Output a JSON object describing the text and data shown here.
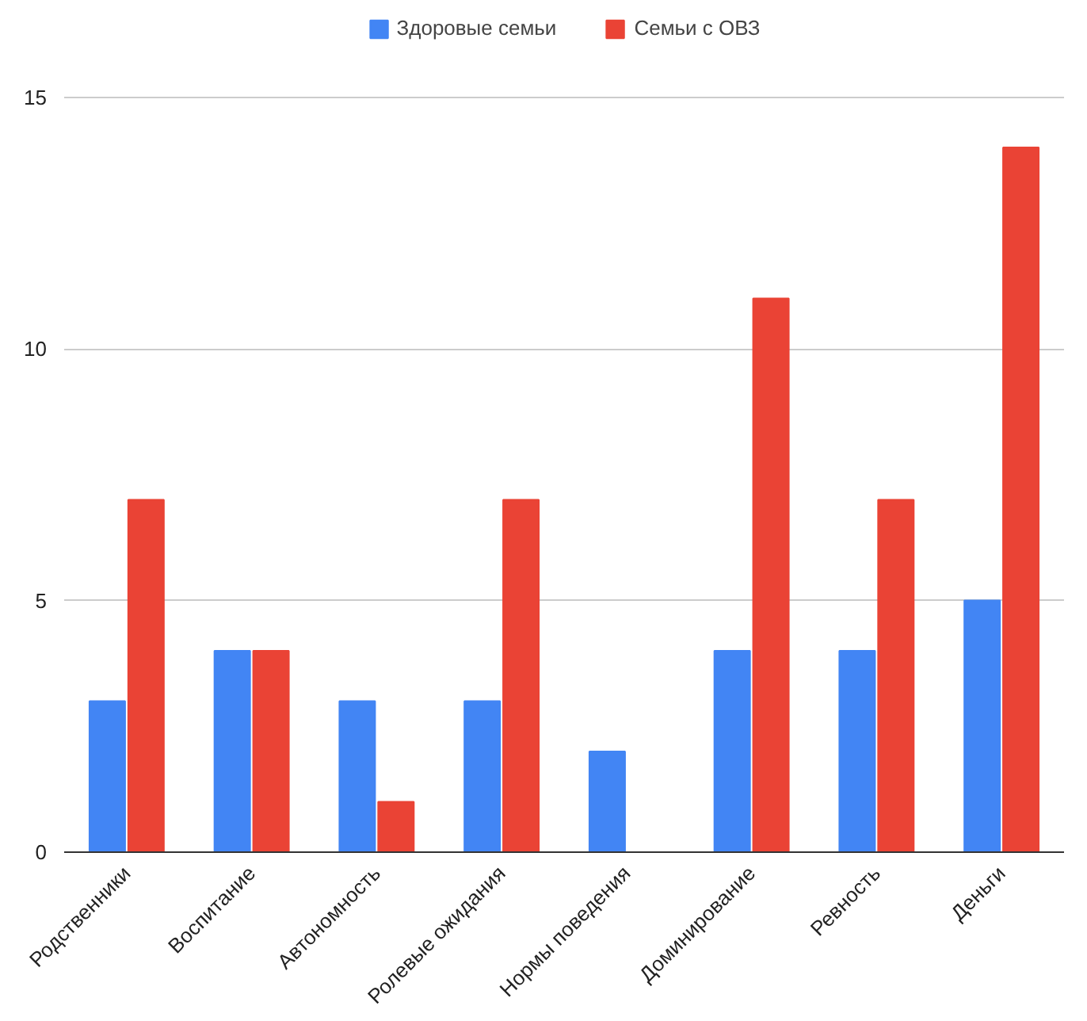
{
  "chart_data": {
    "type": "bar",
    "categories": [
      "Родственники",
      "Воспитание",
      "Автономность",
      "Ролевые ожидания",
      "Нормы поведения",
      "Доминирование",
      "Ревность",
      "Деньги"
    ],
    "series": [
      {
        "name": "Здоровые семьи",
        "color": "#4285f4",
        "values": [
          3,
          4,
          3,
          3,
          2,
          4,
          4,
          5
        ]
      },
      {
        "name": "Семьи с ОВЗ",
        "color": "#ea4335",
        "values": [
          7,
          4,
          1,
          7,
          0,
          11,
          7,
          14
        ]
      }
    ],
    "ylim": [
      0,
      16.6
    ],
    "yticks": [
      0,
      5,
      10,
      15
    ],
    "grid": "y",
    "legend": "top"
  }
}
